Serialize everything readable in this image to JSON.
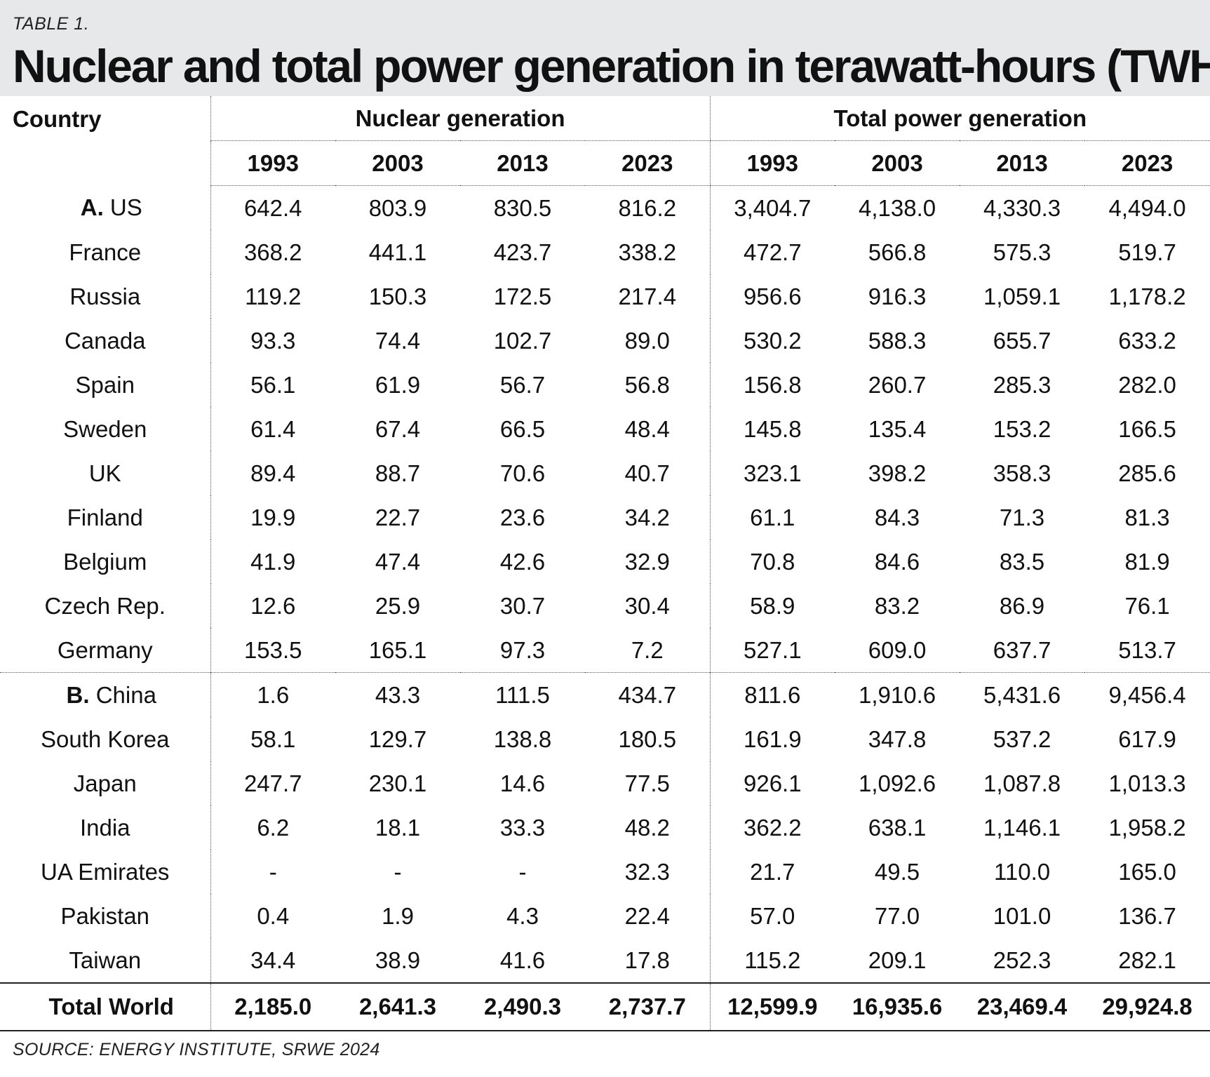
{
  "header": {
    "table_label": "TABLE 1.",
    "title": "Nuclear and total power generation in terawatt-hours (TWH)"
  },
  "columns": {
    "country": "Country",
    "nuclear_group": "Nuclear generation",
    "total_group": "Total power generation",
    "years": [
      "1993",
      "2003",
      "2013",
      "2023"
    ]
  },
  "sections": [
    {
      "letter": "A.",
      "rows": [
        {
          "country": "US",
          "nuclear": [
            "642.4",
            "803.9",
            "830.5",
            "816.2"
          ],
          "total": [
            "3,404.7",
            "4,138.0",
            "4,330.3",
            "4,494.0"
          ]
        },
        {
          "country": "France",
          "nuclear": [
            "368.2",
            "441.1",
            "423.7",
            "338.2"
          ],
          "total": [
            "472.7",
            "566.8",
            "575.3",
            "519.7"
          ]
        },
        {
          "country": "Russia",
          "nuclear": [
            "119.2",
            "150.3",
            "172.5",
            "217.4"
          ],
          "total": [
            "956.6",
            "916.3",
            "1,059.1",
            "1,178.2"
          ]
        },
        {
          "country": "Canada",
          "nuclear": [
            "93.3",
            "74.4",
            "102.7",
            "89.0"
          ],
          "total": [
            "530.2",
            "588.3",
            "655.7",
            "633.2"
          ]
        },
        {
          "country": "Spain",
          "nuclear": [
            "56.1",
            "61.9",
            "56.7",
            "56.8"
          ],
          "total": [
            "156.8",
            "260.7",
            "285.3",
            "282.0"
          ]
        },
        {
          "country": "Sweden",
          "nuclear": [
            "61.4",
            "67.4",
            "66.5",
            "48.4"
          ],
          "total": [
            "145.8",
            "135.4",
            "153.2",
            "166.5"
          ]
        },
        {
          "country": "UK",
          "nuclear": [
            "89.4",
            "88.7",
            "70.6",
            "40.7"
          ],
          "total": [
            "323.1",
            "398.2",
            "358.3",
            "285.6"
          ]
        },
        {
          "country": "Finland",
          "nuclear": [
            "19.9",
            "22.7",
            "23.6",
            "34.2"
          ],
          "total": [
            "61.1",
            "84.3",
            "71.3",
            "81.3"
          ]
        },
        {
          "country": "Belgium",
          "nuclear": [
            "41.9",
            "47.4",
            "42.6",
            "32.9"
          ],
          "total": [
            "70.8",
            "84.6",
            "83.5",
            "81.9"
          ]
        },
        {
          "country": "Czech Rep.",
          "nuclear": [
            "12.6",
            "25.9",
            "30.7",
            "30.4"
          ],
          "total": [
            "58.9",
            "83.2",
            "86.9",
            "76.1"
          ]
        },
        {
          "country": "Germany",
          "nuclear": [
            "153.5",
            "165.1",
            "97.3",
            "7.2"
          ],
          "total": [
            "527.1",
            "609.0",
            "637.7",
            "513.7"
          ]
        }
      ]
    },
    {
      "letter": "B.",
      "rows": [
        {
          "country": "China",
          "nuclear": [
            "1.6",
            "43.3",
            "111.5",
            "434.7"
          ],
          "total": [
            "811.6",
            "1,910.6",
            "5,431.6",
            "9,456.4"
          ]
        },
        {
          "country": "South Korea",
          "nuclear": [
            "58.1",
            "129.7",
            "138.8",
            "180.5"
          ],
          "total": [
            "161.9",
            "347.8",
            "537.2",
            "617.9"
          ]
        },
        {
          "country": "Japan",
          "nuclear": [
            "247.7",
            "230.1",
            "14.6",
            "77.5"
          ],
          "total": [
            "926.1",
            "1,092.6",
            "1,087.8",
            "1,013.3"
          ]
        },
        {
          "country": "India",
          "nuclear": [
            "6.2",
            "18.1",
            "33.3",
            "48.2"
          ],
          "total": [
            "362.2",
            "638.1",
            "1,146.1",
            "1,958.2"
          ]
        },
        {
          "country": "UA Emirates",
          "nuclear": [
            "-",
            "-",
            "-",
            "32.3"
          ],
          "total": [
            "21.7",
            "49.5",
            "110.0",
            "165.0"
          ]
        },
        {
          "country": "Pakistan",
          "nuclear": [
            "0.4",
            "1.9",
            "4.3",
            "22.4"
          ],
          "total": [
            "57.0",
            "77.0",
            "101.0",
            "136.7"
          ]
        },
        {
          "country": "Taiwan",
          "nuclear": [
            "34.4",
            "38.9",
            "41.6",
            "17.8"
          ],
          "total": [
            "115.2",
            "209.1",
            "252.3",
            "282.1"
          ]
        }
      ]
    }
  ],
  "total_row": {
    "label": "Total World",
    "nuclear": [
      "2,185.0",
      "2,641.3",
      "2,490.3",
      "2,737.7"
    ],
    "total": [
      "12,599.9",
      "16,935.6",
      "23,469.4",
      "29,924.8"
    ]
  },
  "footer": {
    "source": "SOURCE: ENERGY INSTITUTE, SRWE 2024"
  }
}
